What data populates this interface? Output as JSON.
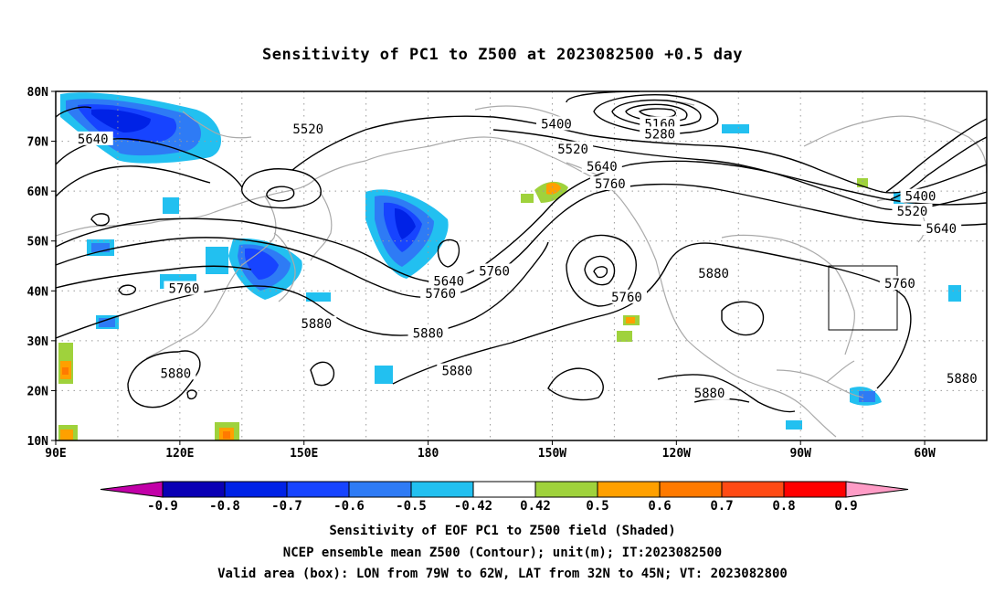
{
  "title": "Sensitivity of PC1 to Z500 at 2023082500 +0.5 day",
  "map": {
    "lat_ticks": [
      "80N",
      "70N",
      "60N",
      "50N",
      "40N",
      "30N",
      "20N",
      "10N"
    ],
    "lon_ticks": [
      "90E",
      "120E",
      "150E",
      "180",
      "150W",
      "120W",
      "90W",
      "60W"
    ],
    "lon_range": [
      "90E",
      "45W"
    ],
    "lat_range": [
      "10N",
      "80N"
    ],
    "contour_labels": [
      {
        "text": "5640",
        "lon": 99,
        "lat": 70.5
      },
      {
        "text": "5520",
        "lon": 151,
        "lat": 72.5
      },
      {
        "text": "5400",
        "lon": -149,
        "lat": 73.5
      },
      {
        "text": "5160",
        "lon": -124,
        "lat": 73.5
      },
      {
        "text": "5280",
        "lon": -124,
        "lat": 71.5
      },
      {
        "text": "5520",
        "lon": -145,
        "lat": 68.5
      },
      {
        "text": "5640",
        "lon": -138,
        "lat": 65.0
      },
      {
        "text": "5760",
        "lon": -136,
        "lat": 61.5
      },
      {
        "text": "5400",
        "lon": -61,
        "lat": 59.0
      },
      {
        "text": "5520",
        "lon": -63,
        "lat": 56.0
      },
      {
        "text": "5640",
        "lon": -56,
        "lat": 52.5
      },
      {
        "text": "5760",
        "lon": -164,
        "lat": 44.0
      },
      {
        "text": "5640",
        "lon": -175,
        "lat": 42.0
      },
      {
        "text": "5760",
        "lon": -177,
        "lat": 39.5
      },
      {
        "text": "5760",
        "lon": 121,
        "lat": 40.5
      },
      {
        "text": "5760",
        "lon": -132,
        "lat": 38.8
      },
      {
        "text": "5880",
        "lon": -111,
        "lat": 43.5
      },
      {
        "text": "5760",
        "lon": -66,
        "lat": 41.5
      },
      {
        "text": "5880",
        "lon": 153,
        "lat": 33.5
      },
      {
        "text": "5880",
        "lon": -180,
        "lat": 31.5
      },
      {
        "text": "5880",
        "lon": -173,
        "lat": 24.0
      },
      {
        "text": "5880",
        "lon": 119,
        "lat": 23.5
      },
      {
        "text": "5880",
        "lon": -112,
        "lat": 19.5
      },
      {
        "text": "5880",
        "lon": -51,
        "lat": 22.5
      }
    ],
    "valid_box": {
      "lon_from": "79W",
      "lon_to": "62W",
      "lat_from": "32N",
      "lat_to": "45N"
    }
  },
  "colorbar": {
    "labels": [
      "-0.9",
      "-0.8",
      "-0.7",
      "-0.6",
      "-0.5",
      "-0.42",
      "0.42",
      "0.5",
      "0.6",
      "0.7",
      "0.8",
      "0.9"
    ],
    "colors": [
      "#0a00b4",
      "#0022e6",
      "#1744ff",
      "#2e7bf5",
      "#22c0f0",
      "#ffffff",
      "#9fd23c",
      "#ffa000",
      "#ff7a00",
      "#ff4a14",
      "#ff0000"
    ],
    "below_color": "#c200a8",
    "above_color": "#ff9cc6"
  },
  "captions": [
    "Sensitivity of EOF PC1 to Z500 field (Shaded)",
    "NCEP ensemble mean Z500 (Contour); unit(m); IT:2023082500",
    "Valid area (box): LON from 79W to 62W, LAT from 32N to 45N; VT: 2023082800"
  ]
}
